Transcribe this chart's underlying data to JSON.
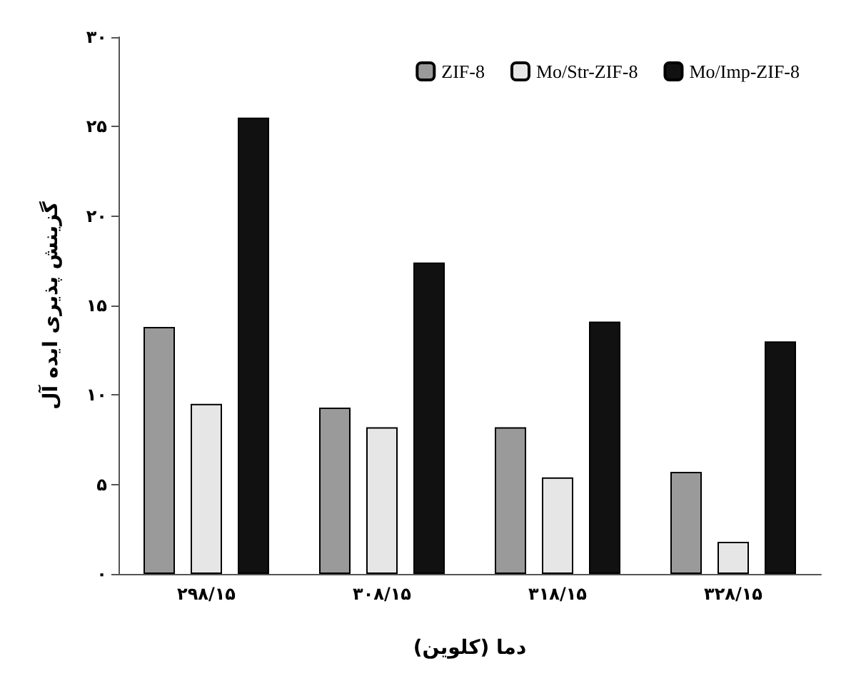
{
  "chart_data": {
    "type": "bar",
    "xlabel": "دما (کلوین)",
    "ylabel": "گزینش پذیری ایده آل",
    "categories": [
      "۲۹۸/۱۵",
      "۳۰۸/۱۵",
      "۳۱۸/۱۵",
      "۳۲۸/۱۵"
    ],
    "series": [
      {
        "name": "ZIF-8",
        "color": "#9a9a9a",
        "values": [
          13.8,
          9.3,
          8.2,
          5.7
        ]
      },
      {
        "name": "Mo/Str-ZIF-8",
        "color": "#e6e6e6",
        "values": [
          9.5,
          8.2,
          5.4,
          1.8
        ]
      },
      {
        "name": "Mo/Imp-ZIF-8",
        "color": "#111111",
        "values": [
          25.5,
          17.4,
          14.1,
          13
        ]
      }
    ],
    "ylim": [
      0,
      30
    ],
    "yticks": [
      {
        "value": 0,
        "label": "۰"
      },
      {
        "value": 5,
        "label": "۵"
      },
      {
        "value": 10,
        "label": "۱۰"
      },
      {
        "value": 15,
        "label": "۱۵"
      },
      {
        "value": 20,
        "label": "۲۰"
      },
      {
        "value": 25,
        "label": "۲۵"
      },
      {
        "value": 30,
        "label": "۳۰"
      }
    ],
    "grid": false,
    "legend": "top right"
  }
}
